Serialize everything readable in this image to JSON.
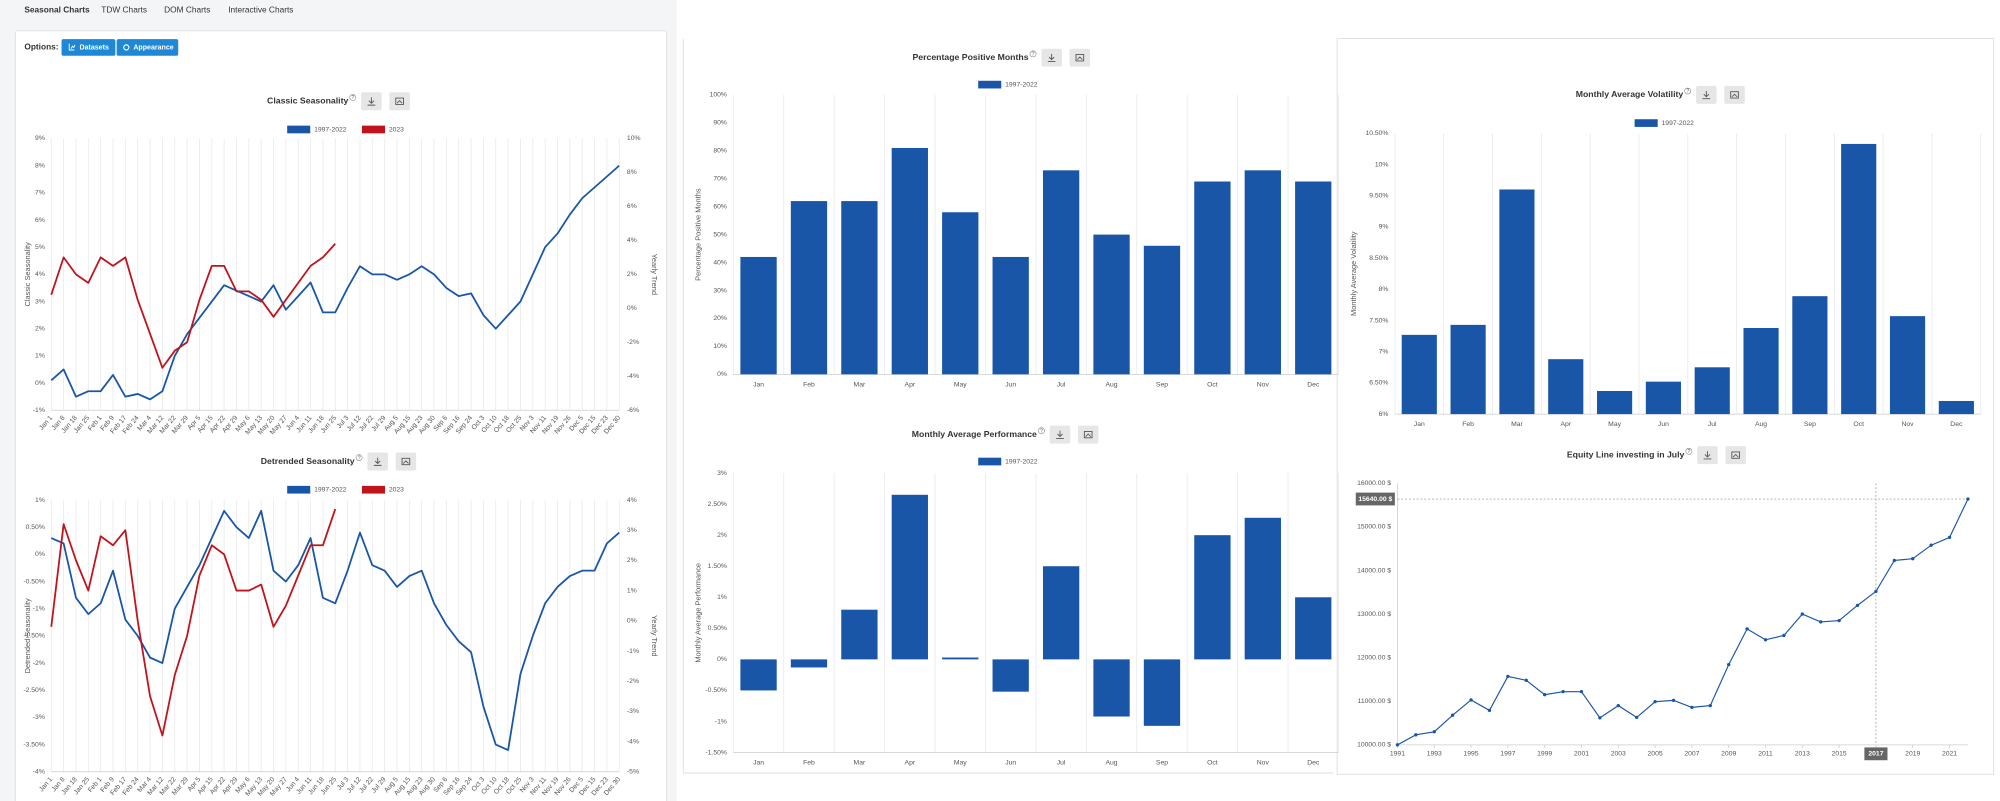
{
  "tabs": [
    "Seasonal Charts",
    "TDW Charts",
    "DOM Charts",
    "Interactive Charts"
  ],
  "options_label": "Options:",
  "buttons": [
    "Datasets",
    "Appearance"
  ],
  "help_icon": "?",
  "chart_data": [
    {
      "type": "line",
      "title": "Classic Seasonality",
      "ylabel": "Classic Seasonality",
      "y2label": "Yearly Trend",
      "categories": [
        "Jan 1",
        "Jan 8",
        "Jan 18",
        "Jan 25",
        "Feb 1",
        "Feb 9",
        "Feb 17",
        "Feb 24",
        "Mar 4",
        "Mar 12",
        "Mar 22",
        "Mar 29",
        "Apr 5",
        "Apr 15",
        "Apr 22",
        "Apr 29",
        "May 6",
        "May 13",
        "May 20",
        "May 27",
        "Jun 4",
        "Jun 11",
        "Jun 18",
        "Jun 25",
        "Jul 3",
        "Jul 12",
        "Jul 22",
        "Jul 29",
        "Aug 5",
        "Aug 15",
        "Aug 23",
        "Aug 30",
        "Sep 6",
        "Sep 16",
        "Sep 24",
        "Oct 3",
        "Oct 10",
        "Oct 18",
        "Oct 25",
        "Nov 3",
        "Nov 11",
        "Nov 19",
        "Nov 26",
        "Dec 5",
        "Dec 15",
        "Dec 23",
        "Dec 30"
      ],
      "ylim": [
        -1,
        9
      ],
      "yticks": [
        {
          "value": -1,
          "label": "-1%"
        },
        {
          "value": 0,
          "label": "0%"
        },
        {
          "value": 1,
          "label": "1%"
        },
        {
          "value": 2,
          "label": "2%"
        },
        {
          "value": 3,
          "label": "3%"
        },
        {
          "value": 4,
          "label": "4%"
        },
        {
          "value": 5,
          "label": "5%"
        },
        {
          "value": 6,
          "label": "6%"
        },
        {
          "value": 7,
          "label": "7%"
        },
        {
          "value": 8,
          "label": "8%"
        },
        {
          "value": 9,
          "label": "9%"
        }
      ],
      "y2lim": [
        -6,
        10
      ],
      "y2ticks": [
        {
          "value": -6,
          "label": "-6%"
        },
        {
          "value": -4,
          "label": "-4%"
        },
        {
          "value": -2,
          "label": "-2%"
        },
        {
          "value": 0,
          "label": "0%"
        },
        {
          "value": 2,
          "label": "2%"
        },
        {
          "value": 4,
          "label": "4%"
        },
        {
          "value": 6,
          "label": "6%"
        },
        {
          "value": 8,
          "label": "8%"
        },
        {
          "value": 10,
          "label": "10%"
        }
      ],
      "grid": true,
      "series": [
        {
          "name": "1997-2022",
          "color": "#1a56a8",
          "values": [
            0.1,
            0.5,
            -0.5,
            -0.3,
            -0.3,
            0.3,
            -0.5,
            -0.4,
            -0.6,
            -0.3,
            1.0,
            1.8,
            2.4,
            3.0,
            3.6,
            3.4,
            3.2,
            3.0,
            3.6,
            2.7,
            3.2,
            3.7,
            2.6,
            2.6,
            3.5,
            4.3,
            4.0,
            4.0,
            3.8,
            4.0,
            4.3,
            4.0,
            3.5,
            3.2,
            3.3,
            2.5,
            2.0,
            2.5,
            3.0,
            4.0,
            5.0,
            5.5,
            6.2,
            6.8,
            7.2,
            7.6,
            8.0
          ]
        },
        {
          "name": "2023",
          "color": "#c0141c",
          "axis": "y2",
          "values": [
            0.8,
            3.0,
            2.0,
            1.5,
            3.0,
            2.5,
            3.0,
            0.5,
            -1.5,
            -3.5,
            -2.5,
            -2.0,
            0.5,
            2.5,
            2.5,
            1.0,
            1.0,
            0.5,
            -0.5,
            0.5,
            1.5,
            2.5,
            3.0,
            3.8,
            null,
            null,
            null,
            null,
            null,
            null,
            null,
            null,
            null,
            null,
            null,
            null,
            null,
            null,
            null,
            null,
            null,
            null,
            null,
            null,
            null,
            null,
            null
          ]
        }
      ]
    },
    {
      "type": "line",
      "title": "Detrended Seasonality",
      "ylabel": "Detrended Seasonality",
      "y2label": "Yearly Trend",
      "categories": [
        "Jan 1",
        "Jan 8",
        "Jan 18",
        "Jan 25",
        "Feb 1",
        "Feb 9",
        "Feb 17",
        "Feb 24",
        "Mar 4",
        "Mar 12",
        "Mar 22",
        "Mar 29",
        "Apr 5",
        "Apr 15",
        "Apr 22",
        "Apr 29",
        "May 6",
        "May 13",
        "May 20",
        "May 27",
        "Jun 4",
        "Jun 11",
        "Jun 18",
        "Jun 25",
        "Jul 3",
        "Jul 12",
        "Jul 22",
        "Jul 29",
        "Aug 5",
        "Aug 15",
        "Aug 23",
        "Aug 30",
        "Sep 6",
        "Sep 16",
        "Sep 24",
        "Oct 3",
        "Oct 10",
        "Oct 18",
        "Oct 25",
        "Nov 3",
        "Nov 11",
        "Nov 19",
        "Nov 26",
        "Dec 5",
        "Dec 15",
        "Dec 23",
        "Dec 30"
      ],
      "ylim": [
        -4,
        1
      ],
      "yticks": [
        {
          "value": -4,
          "label": "-4%"
        },
        {
          "value": -3.5,
          "label": "-3.50%"
        },
        {
          "value": -3,
          "label": "-3%"
        },
        {
          "value": -2.5,
          "label": "-2.50%"
        },
        {
          "value": -2,
          "label": "-2%"
        },
        {
          "value": -1.5,
          "label": "-1.50%"
        },
        {
          "value": -1,
          "label": "-1%"
        },
        {
          "value": -0.5,
          "label": "-0.50%"
        },
        {
          "value": 0,
          "label": "0%"
        },
        {
          "value": 0.5,
          "label": "0.50%"
        },
        {
          "value": 1,
          "label": "1%"
        }
      ],
      "y2lim": [
        -5,
        4
      ],
      "y2ticks": [
        {
          "value": -5,
          "label": "-5%"
        },
        {
          "value": -4,
          "label": "-4%"
        },
        {
          "value": -3,
          "label": "-3%"
        },
        {
          "value": -2,
          "label": "-2%"
        },
        {
          "value": -1,
          "label": "-1%"
        },
        {
          "value": 0,
          "label": "0%"
        },
        {
          "value": 1,
          "label": "1%"
        },
        {
          "value": 2,
          "label": "2%"
        },
        {
          "value": 3,
          "label": "3%"
        },
        {
          "value": 4,
          "label": "4%"
        }
      ],
      "grid": true,
      "series": [
        {
          "name": "1997-2022",
          "color": "#1a56a8",
          "values": [
            0.3,
            0.2,
            -0.8,
            -1.1,
            -0.9,
            -0.3,
            -1.2,
            -1.5,
            -1.9,
            -2.0,
            -1.0,
            -0.6,
            -0.2,
            0.3,
            0.8,
            0.5,
            0.3,
            0.8,
            -0.3,
            -0.5,
            -0.2,
            0.3,
            -0.8,
            -0.9,
            -0.3,
            0.4,
            -0.2,
            -0.3,
            -0.6,
            -0.4,
            -0.3,
            -0.9,
            -1.3,
            -1.6,
            -1.8,
            -2.8,
            -3.5,
            -3.6,
            -2.2,
            -1.5,
            -0.9,
            -0.6,
            -0.4,
            -0.3,
            -0.3,
            0.2,
            0.4
          ]
        },
        {
          "name": "2023",
          "color": "#c0141c",
          "axis": "y2",
          "values": [
            -0.2,
            3.2,
            2.0,
            1.0,
            2.8,
            2.5,
            3.0,
            0,
            -2.5,
            -3.8,
            -1.8,
            -0.5,
            1.5,
            2.5,
            2.2,
            1.0,
            1.0,
            1.2,
            -0.2,
            0.5,
            1.5,
            2.5,
            2.5,
            3.7,
            null,
            null,
            null,
            null,
            null,
            null,
            null,
            null,
            null,
            null,
            null,
            null,
            null,
            null,
            null,
            null,
            null,
            null,
            null,
            null,
            null,
            null,
            null
          ]
        }
      ]
    },
    {
      "type": "bar",
      "title": "Percentage Positive Months",
      "ylabel": "Percentage Positive Months",
      "categories": [
        "Jan",
        "Feb",
        "Mar",
        "Apr",
        "May",
        "Jun",
        "Jul",
        "Aug",
        "Sep",
        "Oct",
        "Nov",
        "Dec"
      ],
      "ylim": [
        0,
        100
      ],
      "yticks": [
        {
          "value": 0,
          "label": "0%"
        },
        {
          "value": 10,
          "label": "10%"
        },
        {
          "value": 20,
          "label": "20%"
        },
        {
          "value": 30,
          "label": "30%"
        },
        {
          "value": 40,
          "label": "40%"
        },
        {
          "value": 50,
          "label": "50%"
        },
        {
          "value": 60,
          "label": "60%"
        },
        {
          "value": 70,
          "label": "70%"
        },
        {
          "value": 80,
          "label": "80%"
        },
        {
          "value": 90,
          "label": "90%"
        },
        {
          "value": 100,
          "label": "100%"
        }
      ],
      "grid": true,
      "series": [
        {
          "name": "1997-2022",
          "color": "#1a56a8",
          "values": [
            42,
            62,
            62,
            81,
            58,
            42,
            73,
            50,
            46,
            69,
            73,
            69
          ]
        }
      ]
    },
    {
      "type": "bar",
      "title": "Monthly Average Performance",
      "ylabel": "Monthly Average Performance",
      "categories": [
        "Jan",
        "Feb",
        "Mar",
        "Apr",
        "May",
        "Jun",
        "Jul",
        "Aug",
        "Sep",
        "Oct",
        "Nov",
        "Dec"
      ],
      "ylim": [
        -1.5,
        3
      ],
      "yticks": [
        {
          "value": -1.5,
          "label": "-1.50%"
        },
        {
          "value": -1,
          "label": "-1%"
        },
        {
          "value": -0.5,
          "label": "-0.50%"
        },
        {
          "value": 0,
          "label": "0%"
        },
        {
          "value": 0.5,
          "label": "0.50%"
        },
        {
          "value": 1,
          "label": "1%"
        },
        {
          "value": 1.5,
          "label": "1.50%"
        },
        {
          "value": 2,
          "label": "2%"
        },
        {
          "value": 2.5,
          "label": "2.50%"
        },
        {
          "value": 3,
          "label": "3%"
        }
      ],
      "grid": true,
      "series": [
        {
          "name": "1997-2022",
          "color": "#1a56a8",
          "values": [
            -0.5,
            -0.13,
            0.8,
            2.65,
            0.03,
            -0.52,
            1.5,
            -0.92,
            -1.07,
            2.0,
            2.28,
            1.0
          ]
        }
      ]
    },
    {
      "type": "bar",
      "title": "Monthly Average Volatility",
      "ylabel": "Monthly Average Volatility",
      "categories": [
        "Jan",
        "Feb",
        "Mar",
        "Apr",
        "May",
        "Jun",
        "Jul",
        "Aug",
        "Sep",
        "Oct",
        "Nov",
        "Dec"
      ],
      "ylim": [
        6,
        10.5
      ],
      "yticks": [
        {
          "value": 6,
          "label": "6%"
        },
        {
          "value": 6.5,
          "label": "6.50%"
        },
        {
          "value": 7,
          "label": "7%"
        },
        {
          "value": 7.5,
          "label": "7.50%"
        },
        {
          "value": 8,
          "label": "8%"
        },
        {
          "value": 8.5,
          "label": "8.50%"
        },
        {
          "value": 9,
          "label": "9%"
        },
        {
          "value": 9.5,
          "label": "9.50%"
        },
        {
          "value": 10,
          "label": "10%"
        },
        {
          "value": 10.5,
          "label": "10.50%"
        }
      ],
      "grid": true,
      "series": [
        {
          "name": "1997-2022",
          "color": "#1a56a8",
          "values": [
            7.27,
            7.43,
            9.6,
            6.88,
            6.37,
            6.52,
            6.75,
            7.38,
            7.89,
            10.33,
            7.57,
            6.21
          ]
        }
      ]
    },
    {
      "type": "line",
      "title": "Equity Line investing in July",
      "x": [
        1991,
        1992,
        1993,
        1994,
        1995,
        1996,
        1997,
        1998,
        1999,
        2000,
        2001,
        2002,
        2003,
        2004,
        2005,
        2006,
        2007,
        2008,
        2009,
        2010,
        2011,
        2012,
        2013,
        2014,
        2015,
        2016,
        2017,
        2018,
        2019,
        2020,
        2021,
        2022
      ],
      "values": [
        10000,
        10230,
        10300,
        10680,
        11030,
        10790,
        11570,
        11480,
        11150,
        11220,
        11220,
        10620,
        10900,
        10630,
        10990,
        11020,
        10860,
        10900,
        11840,
        12660,
        12410,
        12510,
        13000,
        12820,
        12850,
        13200,
        13520,
        14230,
        14270,
        14580,
        14760,
        15640
      ],
      "color": "#1a56a8",
      "xlim": [
        1991,
        2022
      ],
      "xticks": [
        1991,
        1993,
        1995,
        1997,
        1999,
        2001,
        2003,
        2005,
        2007,
        2009,
        2011,
        2013,
        2015,
        2017,
        2019,
        2021
      ],
      "ylim": [
        10000,
        16000
      ],
      "yticks": [
        {
          "value": 10000,
          "label": "10000.00 $"
        },
        {
          "value": 11000,
          "label": "11000.00 $"
        },
        {
          "value": 12000,
          "label": "12000.00 $"
        },
        {
          "value": 13000,
          "label": "13000.00 $"
        },
        {
          "value": 14000,
          "label": "14000.00 $"
        },
        {
          "value": 15000,
          "label": "15000.00 $"
        },
        {
          "value": 16000,
          "label": "16000.00 $"
        }
      ],
      "grid": false,
      "crosshair": {
        "x": 2017,
        "y": {
          "value": 15640,
          "label": "15640.00 $"
        }
      }
    }
  ]
}
